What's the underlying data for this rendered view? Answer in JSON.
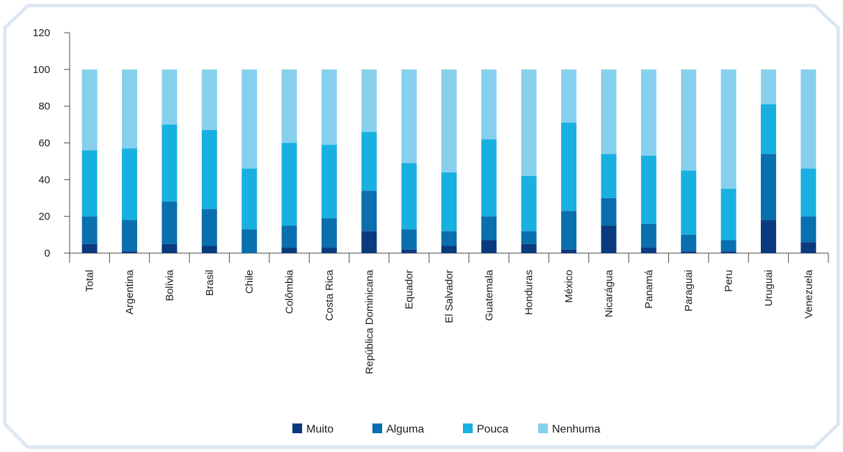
{
  "chart_data": {
    "type": "bar",
    "stacked": true,
    "title": "",
    "xlabel": "",
    "ylabel": "",
    "ylim": [
      0,
      120
    ],
    "yticks": [
      0,
      20,
      40,
      60,
      80,
      100,
      120
    ],
    "grid": false,
    "legend_position": "bottom",
    "categories": [
      "Total",
      "Argentina",
      "Bolívia",
      "Brasil",
      "Chile",
      "Colômbia",
      "Costa Rica",
      "República Dominicana",
      "Equador",
      "El Salvador",
      "Guatemala",
      "Honduras",
      "México",
      "Nicarágua",
      "Panamá",
      "Paraguai",
      "Peru",
      "Uruguai",
      "Venezuela"
    ],
    "series": [
      {
        "name": "Muito",
        "color": "#0b3a7e",
        "values": [
          5,
          1,
          5,
          4,
          0,
          3,
          3,
          12,
          2,
          4,
          7,
          5,
          2,
          15,
          3,
          1,
          1,
          18,
          6
        ]
      },
      {
        "name": "Alguma",
        "color": "#0a6fae",
        "values": [
          15,
          17,
          23,
          20,
          13,
          12,
          16,
          22,
          11,
          8,
          13,
          7,
          21,
          15,
          13,
          9,
          6,
          36,
          14
        ]
      },
      {
        "name": "Pouca",
        "color": "#18b0e0",
        "values": [
          36,
          39,
          42,
          43,
          33,
          45,
          40,
          32,
          36,
          32,
          42,
          30,
          48,
          24,
          37,
          35,
          28,
          27,
          26
        ]
      },
      {
        "name": "Nenhuma",
        "color": "#86d0ee",
        "values": [
          44,
          43,
          30,
          33,
          54,
          40,
          41,
          34,
          51,
          56,
          38,
          58,
          29,
          46,
          47,
          55,
          65,
          19,
          54
        ]
      }
    ]
  }
}
